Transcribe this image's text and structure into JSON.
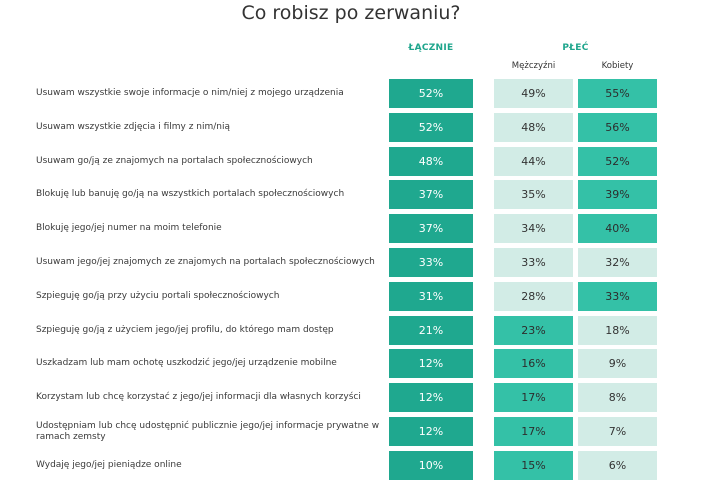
{
  "title": "Co robisz po zerwaniu?",
  "headers": {
    "total": "ŁĄCZNIE",
    "gender": "PŁEĆ",
    "men": "Mężczyźni",
    "women": "Kobiety"
  },
  "colors": {
    "total": "#1fa88f",
    "highlight": "#34c1a7",
    "light": "#d2ece6",
    "header": "#1ea58c"
  },
  "chart_data": {
    "type": "table",
    "title": "Co robisz po zerwaniu?",
    "columns": [
      "ŁĄCZNIE",
      "Mężczyźni",
      "Kobiety"
    ],
    "rows": [
      {
        "label": "Usuwam wszystkie swoje informacje o nim/niej z mojego urządzenia",
        "total": "52%",
        "men": "49%",
        "women": "55%",
        "higher": "women"
      },
      {
        "label": "Usuwam wszystkie zdjęcia i filmy z nim/nią",
        "total": "52%",
        "men": "48%",
        "women": "56%",
        "higher": "women"
      },
      {
        "label": "Usuwam go/ją ze znajomych na portalach społecznościowych",
        "total": "48%",
        "men": "44%",
        "women": "52%",
        "higher": "women"
      },
      {
        "label": "Blokuję lub banuję go/ją na wszystkich portalach społecznościowych",
        "total": "37%",
        "men": "35%",
        "women": "39%",
        "higher": "women"
      },
      {
        "label": "Blokuję jego/jej numer na moim telefonie",
        "total": "37%",
        "men": "34%",
        "women": "40%",
        "higher": "women"
      },
      {
        "label": "Usuwam jego/jej znajomych ze znajomych na portalach społecznościowych",
        "total": "33%",
        "men": "33%",
        "women": "32%",
        "higher": "none"
      },
      {
        "label": "Szpieguję go/ją przy użyciu portali społecznościowych",
        "total": "31%",
        "men": "28%",
        "women": "33%",
        "higher": "women"
      },
      {
        "label": "Szpieguję go/ją z użyciem jego/jej profilu, do którego mam dostęp",
        "total": "21%",
        "men": "23%",
        "women": "18%",
        "higher": "men"
      },
      {
        "label": "Uszkadzam lub mam ochotę uszkodzić jego/jej urządzenie mobilne",
        "total": "12%",
        "men": "16%",
        "women": "9%",
        "higher": "men"
      },
      {
        "label": "Korzystam lub chcę korzystać z jego/jej informacji dla własnych korzyści",
        "total": "12%",
        "men": "17%",
        "women": "8%",
        "higher": "men"
      },
      {
        "label": "Udostępniam lub chcę udostępnić publicznie jego/jej informacje prywatne w ramach zemsty",
        "total": "12%",
        "men": "17%",
        "women": "7%",
        "higher": "men"
      },
      {
        "label": "Wydaję jego/jej pieniądze online",
        "total": "10%",
        "men": "15%",
        "women": "6%",
        "higher": "men"
      }
    ]
  }
}
